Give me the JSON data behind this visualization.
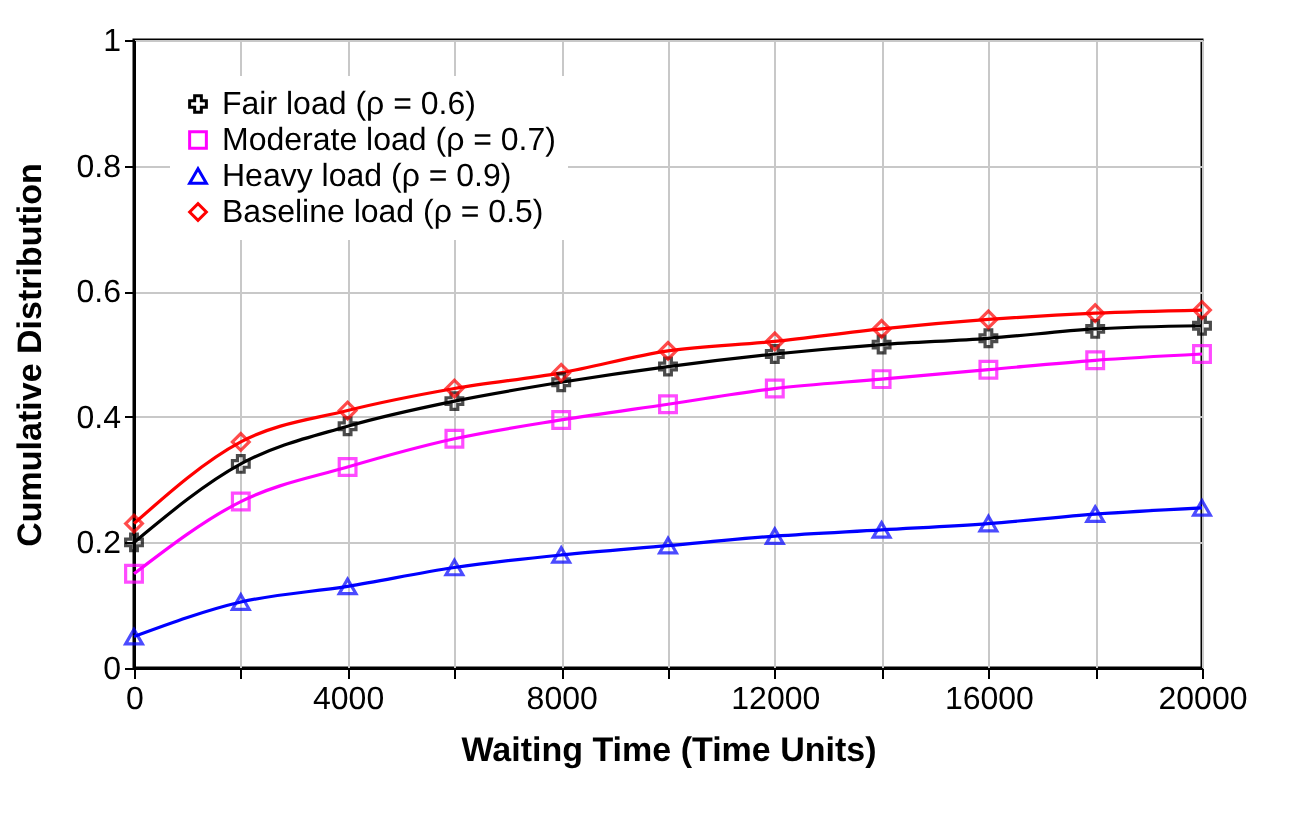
{
  "chart_data": {
    "type": "line",
    "xlabel": "Waiting Time (Time Units)",
    "ylabel": "Cumulative Distribution",
    "x": [
      0,
      2000,
      4000,
      6000,
      8000,
      10000,
      12000,
      14000,
      16000,
      18000,
      20000
    ],
    "series": [
      {
        "name": "Fair load (ρ = 0.6)",
        "color": "#000000",
        "marker": "cross",
        "values": [
          0.2,
          0.325,
          0.385,
          0.425,
          0.455,
          0.48,
          0.5,
          0.515,
          0.525,
          0.54,
          0.545
        ]
      },
      {
        "name": "Moderate load (ρ = 0.7)",
        "color": "#ff00ff",
        "marker": "square",
        "values": [
          0.15,
          0.265,
          0.32,
          0.365,
          0.395,
          0.42,
          0.445,
          0.46,
          0.475,
          0.49,
          0.5
        ]
      },
      {
        "name": "Heavy load (ρ = 0.9)",
        "color": "#0000ff",
        "marker": "triangle",
        "values": [
          0.05,
          0.105,
          0.13,
          0.16,
          0.18,
          0.195,
          0.21,
          0.22,
          0.23,
          0.245,
          0.255
        ]
      },
      {
        "name": "Baseline load (ρ = 0.5)",
        "color": "#ff0000",
        "marker": "diamond",
        "values": [
          0.23,
          0.36,
          0.41,
          0.445,
          0.47,
          0.505,
          0.52,
          0.54,
          0.555,
          0.565,
          0.57
        ]
      }
    ],
    "xlim": [
      0,
      20000
    ],
    "xticks": [
      0,
      {
        "value": 2000,
        "label": null
      },
      4000,
      {
        "value": 6000,
        "label": null
      },
      8000,
      {
        "value": 10000,
        "label": null
      },
      12000,
      {
        "value": 14000,
        "label": null
      },
      16000,
      {
        "value": 18000,
        "label": null
      },
      20000
    ],
    "ylim": [
      0,
      1
    ],
    "yticks": [
      0,
      0.2,
      0.4,
      0.6,
      0.8,
      1
    ],
    "grid": true,
    "legend": "top left",
    "line_style": "solid"
  }
}
